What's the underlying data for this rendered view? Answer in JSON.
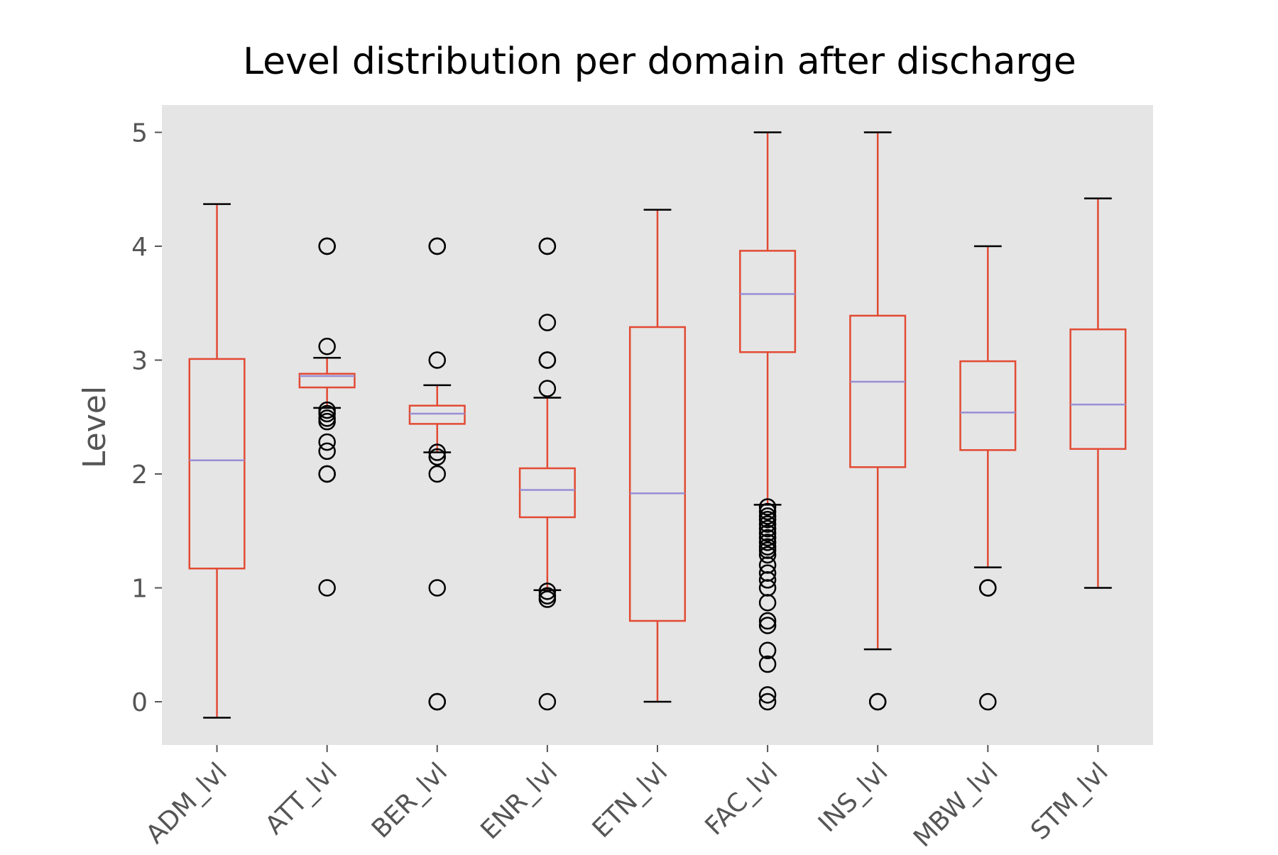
{
  "chart_data": {
    "type": "box",
    "title": "Level distribution per domain after discharge",
    "xlabel": "",
    "ylabel": "Level",
    "ylim": [
      -0.38,
      5.24
    ],
    "yticks": [
      0,
      1,
      2,
      3,
      4,
      5
    ],
    "grid": false,
    "background": "#e5e5e5",
    "box_color": "#e24a33",
    "median_color": "#988ed5",
    "whisker_color": "#e24a33",
    "cap_color": "#000000",
    "flier_color": "#000000",
    "categories": [
      "ADM_lvl",
      "ATT_lvl",
      "BER_lvl",
      "ENR_lvl",
      "ETN_lvl",
      "FAC_lvl",
      "INS_lvl",
      "MBW_lvl",
      "STM_lvl"
    ],
    "boxes": [
      {
        "category": "ADM_lvl",
        "whislo": -0.14,
        "q1": 1.17,
        "med": 2.12,
        "q3": 3.01,
        "whishi": 4.37,
        "fliers": []
      },
      {
        "category": "ATT_lvl",
        "whislo": 2.58,
        "q1": 2.76,
        "med": 2.86,
        "q3": 2.88,
        "whishi": 3.02,
        "fliers": [
          4.0,
          4.0,
          3.12,
          2.56,
          2.53,
          2.49,
          2.46,
          2.28,
          2.2,
          2.0,
          2.0,
          1.0
        ]
      },
      {
        "category": "BER_lvl",
        "whislo": 2.19,
        "q1": 2.44,
        "med": 2.53,
        "q3": 2.6,
        "whishi": 2.78,
        "fliers": [
          4.0,
          4.0,
          3.0,
          2.19,
          2.15,
          2.0,
          1.0,
          0.0,
          0.0
        ]
      },
      {
        "category": "ENR_lvl",
        "whislo": 0.98,
        "q1": 1.62,
        "med": 1.86,
        "q3": 2.05,
        "whishi": 2.67,
        "fliers": [
          4.0,
          4.0,
          3.33,
          3.0,
          3.0,
          2.75,
          0.97,
          0.93,
          0.9,
          0.0
        ]
      },
      {
        "category": "ETN_lvl",
        "whislo": 0.0,
        "q1": 0.71,
        "med": 1.83,
        "q3": 3.29,
        "whishi": 4.32,
        "fliers": []
      },
      {
        "category": "FAC_lvl",
        "whislo": 1.73,
        "q1": 3.07,
        "med": 3.58,
        "q3": 3.96,
        "whishi": 5.0,
        "fliers": [
          1.71,
          1.67,
          1.63,
          1.6,
          1.56,
          1.52,
          1.48,
          1.44,
          1.4,
          1.36,
          1.33,
          1.29,
          1.2,
          1.13,
          1.07,
          1.0,
          0.87,
          0.71,
          0.67,
          0.45,
          0.33,
          0.06,
          0.0
        ]
      },
      {
        "category": "INS_lvl",
        "whislo": 0.46,
        "q1": 2.06,
        "med": 2.81,
        "q3": 3.39,
        "whishi": 5.0,
        "fliers": [
          0.0,
          0.0
        ]
      },
      {
        "category": "MBW_lvl",
        "whislo": 1.18,
        "q1": 2.21,
        "med": 2.54,
        "q3": 2.99,
        "whishi": 4.0,
        "fliers": [
          1.0,
          1.0,
          0.0
        ]
      },
      {
        "category": "STM_lvl",
        "whislo": 1.0,
        "q1": 2.22,
        "med": 2.61,
        "q3": 3.27,
        "whishi": 4.42,
        "fliers": []
      }
    ]
  }
}
